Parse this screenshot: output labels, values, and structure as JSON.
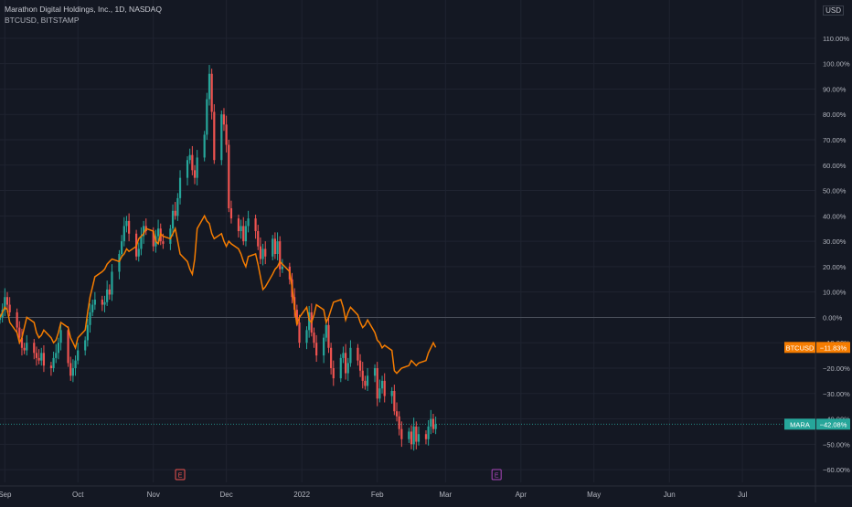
{
  "header": {
    "title": "Marathon Digital Holdings, Inc., 1D, NASDAQ",
    "subtitle": "BTCUSD, BITSTAMP",
    "currency": "USD"
  },
  "colors": {
    "background": "#141823",
    "grid": "#1f2330",
    "up_candle": "#26a69a",
    "down_candle": "#ef5350",
    "btc_line": "#f57c00",
    "zero_line": "#4b505b",
    "axis_text": "#b2b5be",
    "earnings_marker": "#ef5350",
    "earnings_marker_future": "#ab47bc"
  },
  "chart_data": {
    "type": "candlestick+line",
    "y_axis": {
      "unit": "%",
      "ylim": [
        -65,
        115
      ],
      "ticks": [
        "110.00%",
        "100.00%",
        "90.00%",
        "80.00%",
        "70.00%",
        "60.00%",
        "50.00%",
        "40.00%",
        "30.00%",
        "20.00%",
        "10.00%",
        "0.00%",
        "−10.00%",
        "−20.00%",
        "−30.00%",
        "−40.00%",
        "−50.00%",
        "−60.00%"
      ],
      "tick_values": [
        110,
        100,
        90,
        80,
        70,
        60,
        50,
        40,
        30,
        20,
        10,
        0,
        -10,
        -20,
        -30,
        -40,
        -50,
        -60
      ]
    },
    "x_axis": {
      "range": [
        "2021-08-30",
        "2022-07-31"
      ],
      "ticks": [
        {
          "label": "Sep",
          "date": "2021-09-01"
        },
        {
          "label": "Oct",
          "date": "2021-10-01"
        },
        {
          "label": "Nov",
          "date": "2021-11-01"
        },
        {
          "label": "Dec",
          "date": "2021-12-01"
        },
        {
          "label": "2022",
          "date": "2022-01-01"
        },
        {
          "label": "Feb",
          "date": "2022-02-01"
        },
        {
          "label": "Mar",
          "date": "2022-03-01"
        },
        {
          "label": "Apr",
          "date": "2022-04-01"
        },
        {
          "label": "May",
          "date": "2022-05-01"
        },
        {
          "label": "Jun",
          "date": "2022-06-01"
        },
        {
          "label": "Jul",
          "date": "2022-07-01"
        }
      ]
    },
    "grid": true,
    "series": [
      {
        "name": "MARA",
        "kind": "candlestick",
        "last_value_label": "−42.08%",
        "last_value": -42.08,
        "start": "2021-08-30",
        "close": [
          0,
          3,
          8,
          5,
          2,
          -4,
          -8,
          -12,
          -13,
          -10,
          -14,
          -16,
          -17,
          -14,
          -19,
          -20,
          -16,
          -14,
          -10,
          -5,
          -18,
          -23,
          -20,
          -17,
          -13,
          -9,
          -3,
          2,
          5,
          7,
          5,
          6,
          11,
          9,
          18,
          25,
          30,
          36,
          38,
          33,
          24,
          27,
          32,
          36,
          34,
          28,
          32,
          35,
          30,
          29,
          35,
          42,
          40,
          47,
          55,
          62,
          64,
          58,
          55,
          63,
          72,
          86,
          96,
          81,
          62,
          80,
          76,
          68,
          43,
          39,
          34,
          36,
          30,
          36,
          39,
          34,
          28,
          23,
          27,
          24,
          31,
          25,
          30,
          19,
          20,
          15,
          8,
          3,
          -2,
          -10,
          -5,
          2,
          -6,
          -10,
          -15,
          -8,
          -3,
          -12,
          -20,
          -24,
          -16,
          -14,
          -22,
          -18,
          -12,
          -17,
          -21,
          -25,
          -27,
          -23,
          -20,
          -32,
          -28,
          -25,
          -31,
          -29,
          -37,
          -39,
          -44,
          -48,
          -45,
          -50,
          -43,
          -49,
          -46,
          -48,
          -43,
          -40,
          -44,
          -42.08
        ]
      },
      {
        "name": "BTCUSD",
        "kind": "line",
        "last_value_label": "−11.83%",
        "last_value": -11.83,
        "start": "2021-08-30",
        "values": [
          0,
          2,
          4,
          3,
          -2,
          -6,
          -10,
          -8,
          -4,
          0,
          -2,
          -6,
          -8,
          -7,
          -5,
          -8,
          -10,
          -9,
          -6,
          -2,
          -4,
          -8,
          -10,
          -12,
          -8,
          -5,
          2,
          8,
          12,
          16,
          18,
          19,
          21,
          22,
          23,
          22,
          24,
          25,
          27,
          26,
          28,
          31,
          32,
          33,
          35,
          34,
          30,
          29,
          33,
          32,
          31,
          33,
          35,
          30,
          25,
          22,
          19,
          17,
          23,
          35,
          40,
          38,
          37,
          33,
          31,
          33,
          30,
          28,
          30,
          29,
          27,
          25,
          22,
          20,
          24,
          25,
          21,
          16,
          11,
          12,
          17,
          19,
          20,
          22,
          21,
          18,
          12,
          4,
          -3,
          0,
          4,
          -1,
          -2,
          1,
          5,
          3,
          -2,
          0,
          3,
          6,
          7,
          4,
          -1,
          2,
          4,
          1,
          -2,
          -4,
          -3,
          -1,
          -6,
          -9,
          -10,
          -12,
          -11,
          -13,
          -21,
          -22,
          -21,
          -20,
          -19,
          -17,
          -18,
          -19,
          -18,
          -17,
          -14,
          -12,
          -10,
          -11.83
        ]
      }
    ],
    "earnings_markers": [
      {
        "label": "E",
        "date": "2021-11-12"
      },
      {
        "label": "E",
        "date": "2022-03-22"
      }
    ]
  }
}
